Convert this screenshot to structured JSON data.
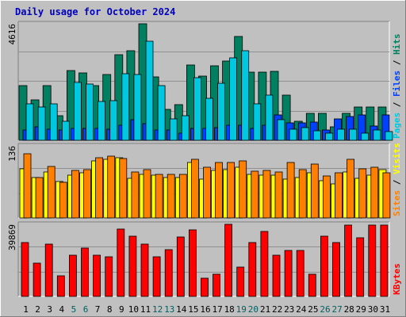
{
  "chart_data": [
    {
      "type": "bar",
      "title": "Daily usage for October 2024",
      "ylabel_parts": [
        "Pages",
        "Files",
        "Hits"
      ],
      "ylabel_colors": [
        "#00c8e0",
        "#0040ff",
        "#008060"
      ],
      "ymax_label": "4616",
      "ylim": [
        0,
        4616
      ],
      "categories": [
        "1",
        "2",
        "3",
        "4",
        "5",
        "6",
        "7",
        "8",
        "9",
        "10",
        "11",
        "12",
        "13",
        "14",
        "15",
        "16",
        "17",
        "18",
        "19",
        "20",
        "21",
        "22",
        "23",
        "24",
        "25",
        "26",
        "27",
        "28",
        "29",
        "30",
        "31"
      ],
      "series": [
        {
          "name": "Hits",
          "color": "#008060",
          "values": [
            2140,
            1600,
            2140,
            960,
            2730,
            2640,
            2160,
            2590,
            3360,
            3520,
            4600,
            2510,
            1230,
            1400,
            2950,
            2520,
            2930,
            3110,
            4090,
            2680,
            2680,
            2720,
            1790,
            760,
            1050,
            1070,
            520,
            1050,
            1320,
            1320,
            1300
          ]
        },
        {
          "name": "Files",
          "color": "#0040ff",
          "values": [
            420,
            520,
            440,
            420,
            470,
            460,
            480,
            440,
            580,
            820,
            650,
            420,
            410,
            290,
            480,
            470,
            510,
            600,
            590,
            480,
            600,
            1000,
            700,
            690,
            710,
            390,
            830,
            940,
            1000,
            570,
            1000
          ]
        },
        {
          "name": "Pages",
          "color": "#00c8e0",
          "values": [
            1420,
            1300,
            1420,
            740,
            2270,
            2220,
            1520,
            1550,
            2620,
            2600,
            3900,
            2160,
            850,
            980,
            2470,
            1640,
            2250,
            3250,
            3520,
            1430,
            1780,
            810,
            430,
            500,
            380,
            290,
            430,
            430,
            290,
            400,
            330
          ]
        }
      ]
    },
    {
      "type": "bar",
      "ylabel_parts": [
        "Sites",
        "Visits"
      ],
      "ylabel_colors": [
        "#ff8000",
        "#ffff00"
      ],
      "ymax_label": "136",
      "ylim": [
        0,
        136
      ],
      "categories": [
        "1",
        "2",
        "3",
        "4",
        "5",
        "6",
        "7",
        "8",
        "9",
        "10",
        "11",
        "12",
        "13",
        "14",
        "15",
        "16",
        "17",
        "18",
        "19",
        "20",
        "21",
        "22",
        "23",
        "24",
        "25",
        "26",
        "27",
        "28",
        "29",
        "30",
        "31"
      ],
      "series": [
        {
          "name": "Visits",
          "color": "#ffff00",
          "values": [
            91,
            76,
            86,
            68,
            80,
            84,
            106,
            110,
            112,
            74,
            82,
            80,
            76,
            76,
            104,
            72,
            88,
            90,
            94,
            82,
            80,
            80,
            72,
            76,
            84,
            70,
            64,
            86,
            74,
            80,
            90
          ]
        },
        {
          "name": "Sites",
          "color": "#ff8000",
          "values": [
            119,
            75,
            96,
            67,
            89,
            90,
            113,
            115,
            111,
            86,
            90,
            81,
            82,
            81,
            110,
            94,
            104,
            104,
            106,
            87,
            88,
            86,
            104,
            90,
            100,
            78,
            84,
            110,
            91,
            94,
            84
          ]
        }
      ]
    },
    {
      "type": "bar",
      "ylabel_parts": [
        "KBytes"
      ],
      "ylabel_colors": [
        "#ff0000"
      ],
      "ymax_label": "39869",
      "ylim": [
        0,
        39869
      ],
      "categories": [
        "1",
        "2",
        "3",
        "4",
        "5",
        "6",
        "7",
        "8",
        "9",
        "10",
        "11",
        "12",
        "13",
        "14",
        "15",
        "16",
        "17",
        "18",
        "19",
        "20",
        "21",
        "22",
        "23",
        "24",
        "25",
        "26",
        "27",
        "28",
        "29",
        "30",
        "31"
      ],
      "series": [
        {
          "name": "KBytes",
          "color": "#ff0000",
          "values": [
            29600,
            18300,
            28500,
            11400,
            22400,
            26400,
            22400,
            21600,
            37000,
            33100,
            28500,
            21600,
            25600,
            32300,
            36600,
            9800,
            12200,
            39500,
            15900,
            29600,
            35400,
            22400,
            25200,
            25200,
            12200,
            33100,
            29600,
            39100,
            31900,
            39100,
            39100
          ]
        }
      ]
    }
  ],
  "x_label_colors": {
    "weekday": "#000000",
    "weekend": "#006060"
  },
  "weekend_days": [
    "5",
    "6",
    "12",
    "13",
    "19",
    "20",
    "26",
    "27"
  ],
  "colors": {
    "background": "#c0c0c0",
    "plot_bg": "#c0c0c0",
    "border_light": "#ffffff",
    "border_dark": "#808080",
    "bar_outline": "#000000",
    "title_color": "#0000c0",
    "grid": "#909090"
  }
}
